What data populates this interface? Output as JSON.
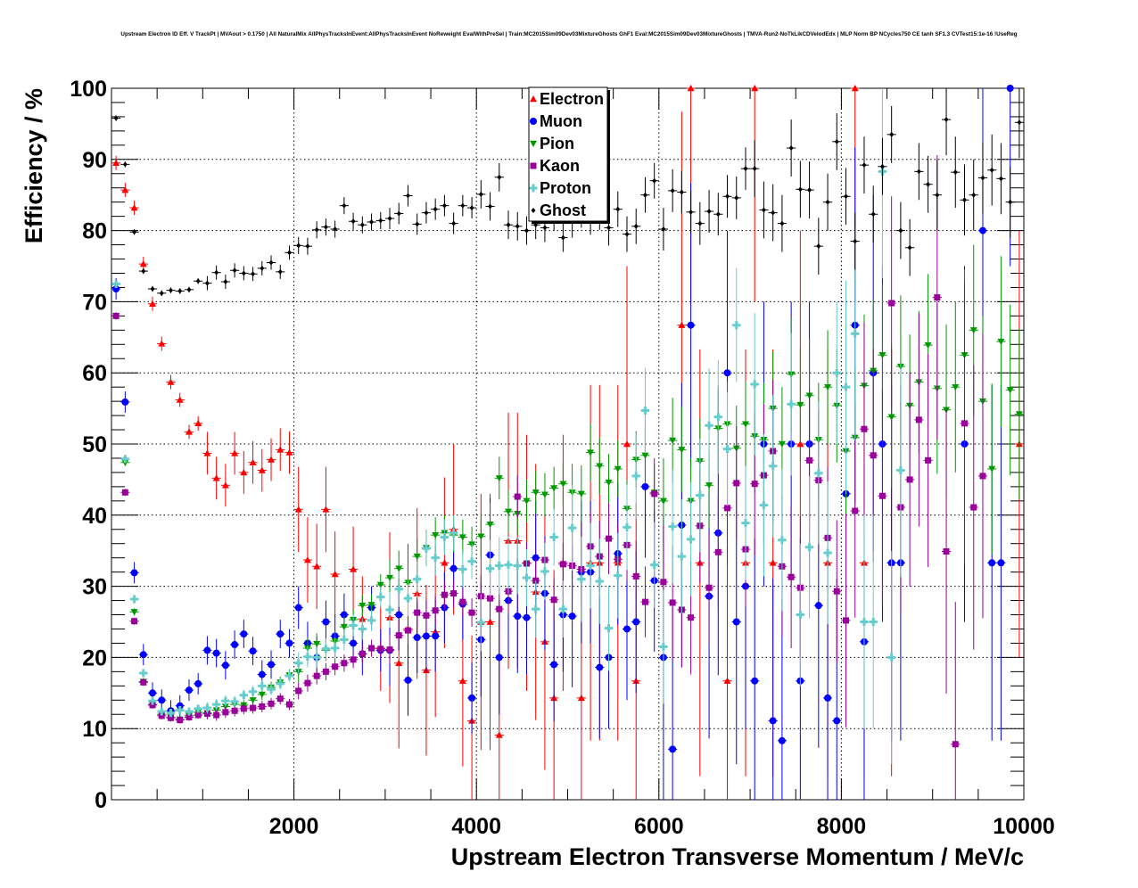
{
  "chart_data": {
    "type": "scatter",
    "title": "Upstream Electron ID Eff. V TrackPt | MVAout > 0.1750 | All NaturalMix AllPhysTracksInEvent:AllPhysTracksInEvent NoReweight EvalWithPreSel | Train:MC2015Sim09Dev03MixtureGhosts GhF1 Eval:MC2015Sim09Dev03MixtureGhosts | TMVA-Run2-NoTkLikCDVelodEdx | MLP Norm BP NCycles750 CE tanh SF1.3 CVTest15:1e-16 !UseReg",
    "xlabel": "Upstream Electron Transverse Momentum / MeV/c",
    "ylabel": "Efficiency / %",
    "xlim": [
      0,
      10000
    ],
    "ylim": [
      0,
      100
    ],
    "xticks": [
      "2000",
      "4000",
      "6000",
      "8000",
      "10000"
    ],
    "yticks": [
      "0",
      "10",
      "20",
      "30",
      "40",
      "50",
      "60",
      "70",
      "80",
      "90",
      "100"
    ],
    "grid": true,
    "legend_position": "top-center",
    "bin_start": 50,
    "bin_width": 100,
    "series": [
      {
        "name": "Electron",
        "color": "#ff0000",
        "marker": "triangle-up",
        "err_per_1000": [
          1,
          3,
          6,
          12,
          18,
          25,
          30,
          30,
          30,
          30
        ],
        "values": [
          89.5,
          85.7,
          83.2,
          75.3,
          69.7,
          64.1,
          58.7,
          56.2,
          51.7,
          52.9,
          48.7,
          45.2,
          44.2,
          48.7,
          46.0,
          47.4,
          46.3,
          47.8,
          49.2,
          48.8,
          40.8,
          33.7,
          32.8,
          40.8,
          31.7,
          null,
          32.4,
          25.4,
          null,
          21.3,
          25.6,
          19.2,
          24.0,
          29.0,
          18.2,
          23.6,
          33.3,
          38.0,
          16.7,
          11.1,
          25.0,
          25.0,
          9.1,
          36.4,
          36.4,
          33.3,
          29.2,
          22.2,
          14.3,
          33.3,
          null,
          14.3,
          33.3,
          33.3,
          null,
          33.3,
          50.0,
          16.7,
          null,
          null,
          null,
          null,
          66.7,
          100,
          33.3,
          null,
          null,
          16.7,
          null,
          33.3,
          100,
          null,
          33.3,
          null,
          null,
          50.0,
          null,
          null,
          33.3,
          null,
          null,
          100,
          33.3,
          null,
          null,
          33.3,
          null,
          null,
          null,
          null,
          null,
          null,
          null,
          null,
          null,
          null,
          null,
          null,
          null,
          50.0
        ]
      },
      {
        "name": "Muon",
        "color": "#0000ff",
        "marker": "circle",
        "err_per_1000": [
          1.5,
          2,
          3,
          5,
          8,
          10,
          20,
          20,
          25,
          25
        ],
        "values": [
          71.8,
          55.9,
          31.9,
          20.4,
          15.0,
          14.0,
          12.5,
          13.2,
          15.4,
          16.3,
          21.0,
          20.6,
          18.9,
          21.8,
          23.3,
          20.9,
          17.6,
          19.0,
          23.3,
          22.0,
          27.0,
          22.0,
          20.0,
          25.0,
          23.0,
          26.0,
          22.0,
          20.5,
          27.0,
          21.0,
          21.0,
          26.0,
          16.8,
          22.8,
          23.0,
          23.0,
          27.0,
          32.5,
          27.5,
          14.3,
          22.5,
          34.4,
          20.0,
          28.0,
          25.8,
          25.6,
          34.0,
          29.0,
          19.0,
          26.0,
          25.8,
          32.0,
          32.0,
          18.6,
          20.0,
          34.6,
          24.0,
          25.0,
          44.0,
          30.8,
          20.0,
          7.1,
          38.6,
          66.7,
          null,
          28.6,
          37.5,
          60.0,
          25.0,
          30.0,
          16.7,
          50.0,
          11.1,
          8.3,
          50.0,
          16.7,
          50.0,
          27.3,
          14.3,
          11.1,
          43.0,
          66.7,
          22.2,
          60.0,
          50.0,
          33.3,
          33.3,
          null,
          null,
          null,
          null,
          null,
          null,
          50.0,
          null,
          80.0,
          33.3,
          33.3,
          100,
          null
        ]
      },
      {
        "name": "Pion",
        "color": "#009900",
        "marker": "triangle-down",
        "err_per_1000": [
          0.5,
          0.8,
          1.5,
          2.5,
          3,
          4,
          6,
          8,
          10,
          12
        ],
        "values": [
          68.0,
          47.4,
          26.4,
          16.6,
          13.4,
          12.0,
          11.6,
          11.3,
          11.8,
          12.3,
          12.2,
          12.6,
          13.1,
          13.4,
          13.3,
          14.0,
          14.8,
          15.8,
          16.5,
          17.5,
          18.0,
          21.3,
          21.9,
          21.0,
          22.3,
          24.3,
          25.3,
          27.3,
          27.4,
          30.2,
          31.2,
          32.5,
          30.5,
          34.2,
          35.4,
          37.2,
          37.5,
          37.2,
          36.9,
          35.9,
          37.0,
          38.7,
          45.2,
          40.5,
          40.2,
          42.0,
          43.2,
          42.9,
          43.8,
          44.4,
          43.2,
          43.0,
          48.8,
          46.9,
          44.6,
          46.5,
          40.9,
          47.8,
          48.4,
          43.2,
          42.0,
          50.5,
          49.2,
          42.0,
          47.6,
          44.2,
          52.2,
          52.8,
          49.4,
          52.8,
          51.1,
          50.6,
          55.0,
          50.0,
          59.8,
          55.5,
          56.8,
          50.6,
          58.0,
          55.4,
          49.0,
          50.9,
          58.2,
          60.3,
          62.5,
          53.8,
          60.9,
          55.4,
          58.7,
          63.9,
          57.8,
          54.8,
          58.0,
          62.5,
          66.0,
          56.0,
          46.5,
          64.4,
          57.6,
          54.2
        ]
      },
      {
        "name": "Kaon",
        "color": "#990099",
        "marker": "square",
        "err_per_1000": [
          0.5,
          0.8,
          1.2,
          2,
          3,
          5,
          8,
          10,
          15,
          20
        ],
        "values": [
          68.0,
          43.2,
          25.1,
          16.5,
          13.3,
          11.8,
          11.5,
          11.2,
          11.6,
          11.9,
          12.1,
          11.9,
          12.3,
          12.5,
          12.8,
          12.9,
          13.1,
          13.5,
          14.2,
          13.4,
          15.3,
          16.4,
          17.4,
          18.0,
          18.7,
          19.2,
          19.7,
          20.5,
          21.3,
          21.2,
          21.1,
          23.1,
          23.8,
          26.3,
          25.9,
          26.6,
          28.8,
          29.0,
          27.8,
          26.3,
          28.6,
          28.3,
          26.8,
          29.3,
          42.6,
          33.2,
          30.8,
          33.7,
          28.1,
          33.1,
          32.9,
          32.4,
          35.6,
          34.2,
          36.7,
          33.8,
          35.8,
          31.4,
          27.8,
          43.0,
          30.6,
          27.7,
          26.7,
          25.6,
          38.5,
          29.8,
          34.8,
          41.0,
          44.5,
          35.2,
          44.4,
          45.6,
          49.0,
          32.8,
          31.3,
          29.8,
          47.7,
          44.9,
          36.8,
          29.3,
          25.2,
          40.6,
          52.1,
          48.4,
          42.7,
          69.8,
          41.1,
          45.0,
          53.4,
          47.7,
          70.6,
          34.9,
          7.8,
          52.9,
          41.1,
          45.5,
          null,
          null,
          null,
          null
        ]
      },
      {
        "name": "Proton",
        "color": "#66cccc",
        "marker": "cross",
        "err_per_1000": [
          0.5,
          0.8,
          1.5,
          2.5,
          4,
          6,
          8,
          10,
          15,
          20
        ],
        "values": [
          72.5,
          47.9,
          28.2,
          17.8,
          13.9,
          12.4,
          12.2,
          12.6,
          12.4,
          12.8,
          12.9,
          13.4,
          13.9,
          13.8,
          14.7,
          15.2,
          16.0,
          15.5,
          16.3,
          17.4,
          19.2,
          20.1,
          20.0,
          21.2,
          21.3,
          22.5,
          24.5,
          24.0,
          25.2,
          28.5,
          26.7,
          29.6,
          28.3,
          31.0,
          35.3,
          34.0,
          36.9,
          37.5,
          32.4,
          33.5,
          24.9,
          32.5,
          32.9,
          33.0,
          32.9,
          31.2,
          26.8,
          32.1,
          36.9,
          26.8,
          38.2,
          31.0,
          32.9,
          30.7,
          24.1,
          31.5,
          38.3,
          45.5,
          54.7,
          33.0,
          21.5,
          38.4,
          34.2,
          36.6,
          42.8,
          52.6,
          53.8,
          49.3,
          66.7,
          38.9,
          58.4,
          41.4,
          46.9,
          36.5,
          55.6,
          26.0,
          35.5,
          45.9,
          34.7,
          60.0,
          58.0,
          65.5,
          25.0,
          25.0,
          88.3,
          20.0,
          46.3,
          null,
          null,
          null,
          null,
          null,
          null,
          null,
          null,
          null,
          null,
          null,
          null,
          null
        ]
      },
      {
        "name": "Ghost",
        "color": "#000000",
        "marker": "diamond",
        "err_per_1000": [
          0.4,
          1,
          1.2,
          1.5,
          2,
          2.5,
          3,
          4,
          4,
          5
        ],
        "values": [
          95.8,
          89.3,
          79.8,
          74.3,
          71.8,
          71.2,
          71.6,
          71.5,
          71.7,
          72.9,
          72.6,
          74.1,
          72.8,
          74.4,
          74.0,
          73.9,
          74.7,
          75.5,
          74.2,
          76.9,
          77.9,
          77.8,
          80.1,
          80.5,
          80.2,
          83.5,
          81.3,
          80.8,
          81.2,
          81.4,
          81.7,
          82.4,
          84.9,
          80.9,
          82.5,
          83.0,
          83.5,
          81.0,
          83.5,
          83.2,
          85.1,
          83.4,
          87.5,
          80.8,
          80.6,
          80.0,
          80.8,
          80.4,
          82.0,
          79.0,
          81.5,
          82.9,
          81.9,
          82.6,
          80.4,
          83.0,
          79.5,
          80.6,
          85.0,
          87.0,
          80.2,
          85.6,
          85.4,
          82.6,
          81.0,
          82.7,
          82.3,
          84.8,
          84.6,
          88.7,
          88.7,
          82.9,
          82.5,
          81.0,
          91.6,
          85.8,
          85.7,
          77.8,
          84.0,
          92.5,
          84.8,
          78.5,
          89.2,
          82.3,
          89.0,
          93.5,
          80.0,
          77.6,
          88.3,
          86.5,
          85.0,
          95.6,
          88.2,
          84.3,
          85.0,
          87.4,
          88.5,
          87.3,
          84.0,
          95.2
        ]
      }
    ]
  }
}
